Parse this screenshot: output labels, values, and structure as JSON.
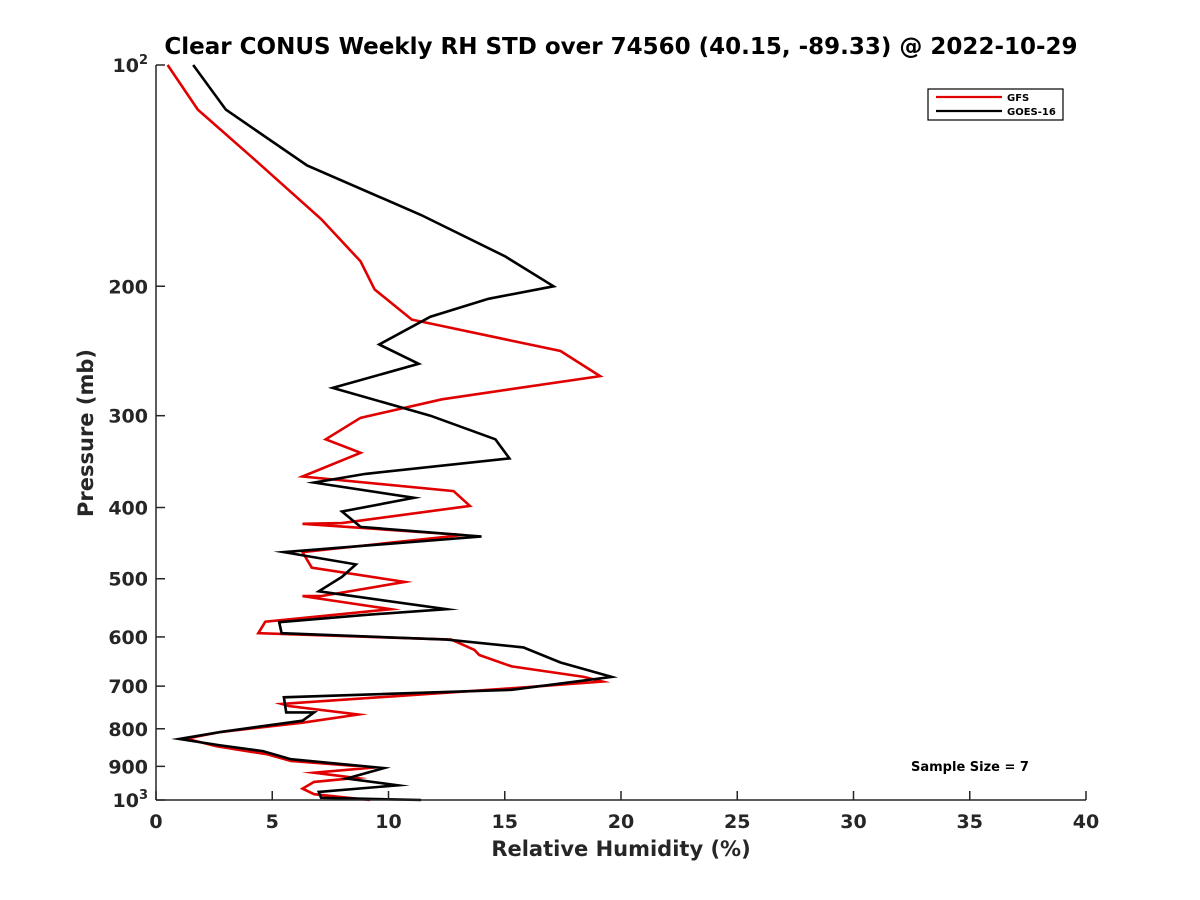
{
  "chart_data": {
    "type": "line",
    "title": "Clear CONUS Weekly RH STD over 74560 (40.15, -89.33) @ 2022-10-29",
    "xlabel": "Relative Humidity (%)",
    "ylabel": "Pressure (mb)",
    "xlim": [
      0,
      40
    ],
    "ylim": [
      100,
      1000
    ],
    "y_scale": "log",
    "y_reversed": true,
    "grid": false,
    "legend_position": "top-right",
    "x_ticks": [
      "0",
      "5",
      "10",
      "15",
      "20",
      "25",
      "30",
      "35",
      "40"
    ],
    "y_ticks": [
      {
        "value": 100,
        "label": "10",
        "sup": "2"
      },
      {
        "value": 200,
        "label": "200",
        "sup": ""
      },
      {
        "value": 300,
        "label": "300",
        "sup": ""
      },
      {
        "value": 400,
        "label": "400",
        "sup": ""
      },
      {
        "value": 500,
        "label": "500",
        "sup": ""
      },
      {
        "value": 600,
        "label": "600",
        "sup": ""
      },
      {
        "value": 700,
        "label": "700",
        "sup": ""
      },
      {
        "value": 800,
        "label": "800",
        "sup": ""
      },
      {
        "value": 900,
        "label": "900",
        "sup": ""
      },
      {
        "value": 1000,
        "label": "10",
        "sup": "3"
      }
    ],
    "annotation": "Sample Size = 7",
    "series": [
      {
        "name": "GFS",
        "color": "#e00000",
        "x": [
          0.5,
          1.8,
          4.3,
          7.1,
          8.8,
          9.4,
          11.0,
          17.4,
          19.1,
          12.3,
          8.8,
          7.3,
          8.8,
          6.3,
          12.8,
          13.5,
          8.0,
          6.3,
          13.2,
          6.3,
          6.7,
          10.7,
          7.1,
          6.3,
          10.1,
          4.7,
          4.4,
          12.7,
          13.7,
          13.9,
          15.3,
          18.4,
          19.2,
          15.2,
          5.4,
          5.7,
          8.7,
          6.3,
          2.8,
          1.3,
          2.6,
          4.8,
          5.8,
          9.4,
          6.8,
          8.6,
          6.8,
          6.3,
          6.8,
          9.2
        ],
        "y": [
          100,
          115,
          135,
          162,
          185,
          202,
          222,
          245,
          265,
          285,
          302,
          323,
          337,
          363,
          380,
          398,
          420,
          421,
          436,
          460,
          483,
          505,
          528,
          528,
          550,
          572,
          593,
          605,
          625,
          635,
          658,
          680,
          690,
          705,
          740,
          745,
          765,
          785,
          808,
          825,
          845,
          867,
          885,
          903,
          918,
          933,
          945,
          965,
          982,
          1000
        ]
      },
      {
        "name": "GOES-16",
        "color": "#000000",
        "x": [
          1.6,
          3.0,
          6.5,
          11.4,
          15.0,
          17.1,
          14.3,
          11.8,
          9.6,
          11.3,
          7.6,
          11.8,
          14.6,
          15.2,
          9.0,
          6.8,
          11.1,
          8.0,
          8.8,
          14.0,
          5.5,
          8.6,
          8.0,
          7.0,
          12.5,
          9.0,
          5.3,
          5.4,
          12.5,
          15.8,
          17.4,
          19.6,
          15.3,
          5.5,
          5.6,
          6.8,
          6.3,
          2.8,
          1.0,
          2.7,
          4.6,
          5.8,
          9.8,
          8.2,
          10.4,
          7.0,
          7.1,
          11.4
        ],
        "y": [
          100,
          115,
          137,
          160,
          182,
          200,
          208,
          220,
          240,
          255,
          275,
          300,
          323,
          343,
          360,
          370,
          388,
          405,
          425,
          438,
          460,
          478,
          497,
          520,
          550,
          560,
          573,
          593,
          605,
          620,
          650,
          680,
          708,
          725,
          760,
          760,
          780,
          808,
          826,
          842,
          858,
          880,
          905,
          935,
          955,
          975,
          993,
          1000
        ]
      }
    ]
  }
}
